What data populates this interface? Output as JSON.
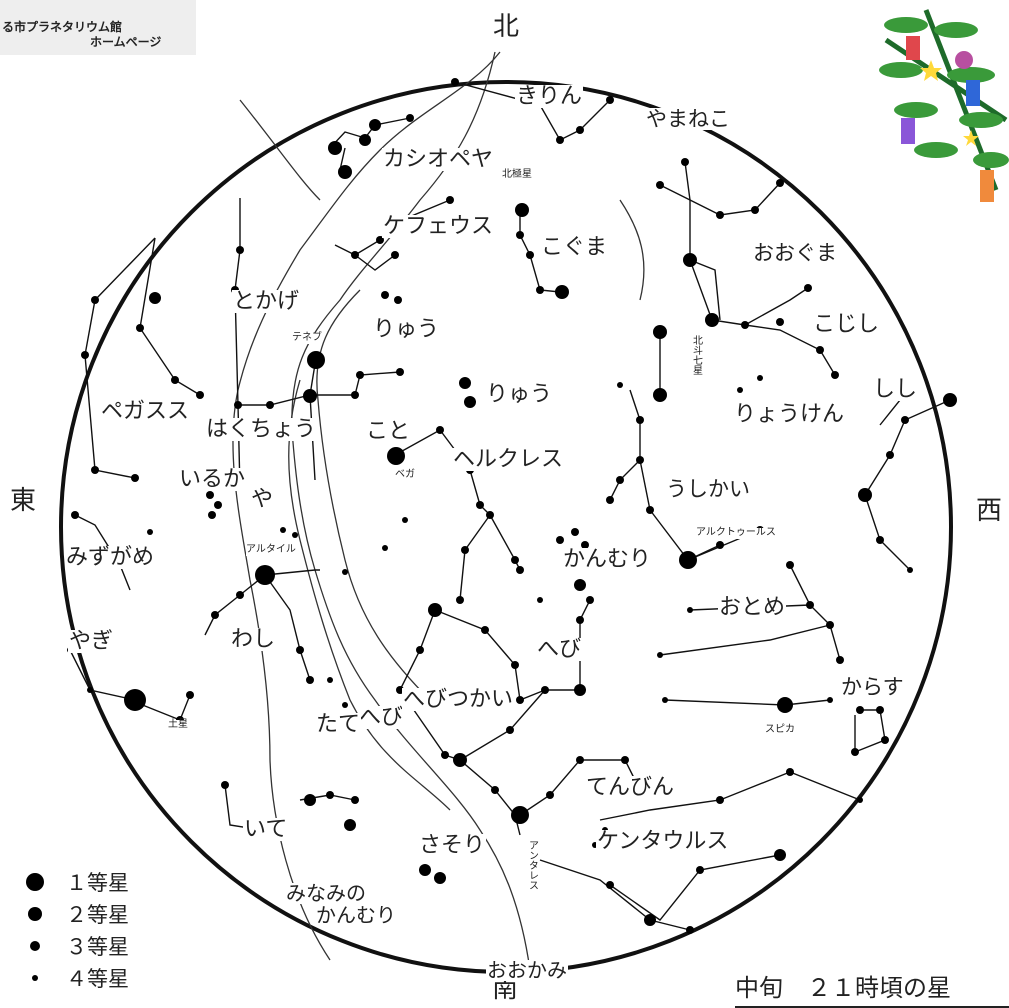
{
  "header": {
    "line1": "る市プラネタリウム館",
    "line2": "ホームページ"
  },
  "directions": {
    "north": "北",
    "south": "南",
    "east": "東",
    "west": "西"
  },
  "caption": "中旬　２１時頃の星",
  "legend": [
    {
      "label": "１等星",
      "size": 1
    },
    {
      "label": "２等星",
      "size": 2
    },
    {
      "label": "３等星",
      "size": 3
    },
    {
      "label": "４等星",
      "size": 4
    }
  ],
  "constellations": [
    "きりん",
    "やまねこ",
    "カシオペヤ",
    "ケフェウス",
    "こぐま",
    "おおぐま",
    "とかげ",
    "りゅう",
    "こじし",
    "りゅう",
    "しし",
    "ペガスス",
    "はくちょう",
    "りょうけん",
    "こと",
    "ヘルクレス",
    "いるか",
    "や",
    "うしかい",
    "みずがめ",
    "かんむり",
    "おとめ",
    "やぎ",
    "わし",
    "へび",
    "からす",
    "へび",
    "へびつかい",
    "たて",
    "てんびん",
    "いて",
    "さそり",
    "ケンタウルス",
    "みなみの",
    "かんむり",
    "おおかみ"
  ],
  "stars": [
    "北極星",
    "テネブ",
    "ベガ",
    "アルタイル",
    "アルクトゥールス",
    "スピカ",
    "アンタレス",
    "北斗七星",
    "土星"
  ],
  "colors": {
    "sky_outline": "#111111",
    "background": "#ffffff",
    "star": "#000000"
  },
  "icons": {
    "decoration": "tanabata-bamboo-icon"
  }
}
